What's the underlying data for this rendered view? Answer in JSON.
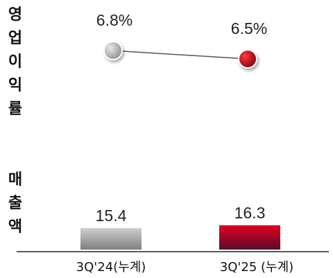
{
  "chart_data": [
    {
      "type": "line",
      "ylabel": "영업이익률",
      "categories": [
        "3Q'24(누계)",
        "3Q'25 (누계)"
      ],
      "values": [
        6.8,
        6.5
      ],
      "value_labels": [
        "6.8%",
        "6.5%"
      ],
      "unit": "%",
      "point_colors": [
        "#a8a8a8",
        "#c8001e"
      ]
    },
    {
      "type": "bar",
      "ylabel": "매출액",
      "categories": [
        "3Q'24(누계)",
        "3Q'25 (누계)"
      ],
      "values": [
        15.4,
        16.3
      ],
      "value_labels": [
        "15.4",
        "16.3"
      ],
      "bar_colors": [
        "#9a9a9a",
        "#c8001e"
      ]
    }
  ]
}
